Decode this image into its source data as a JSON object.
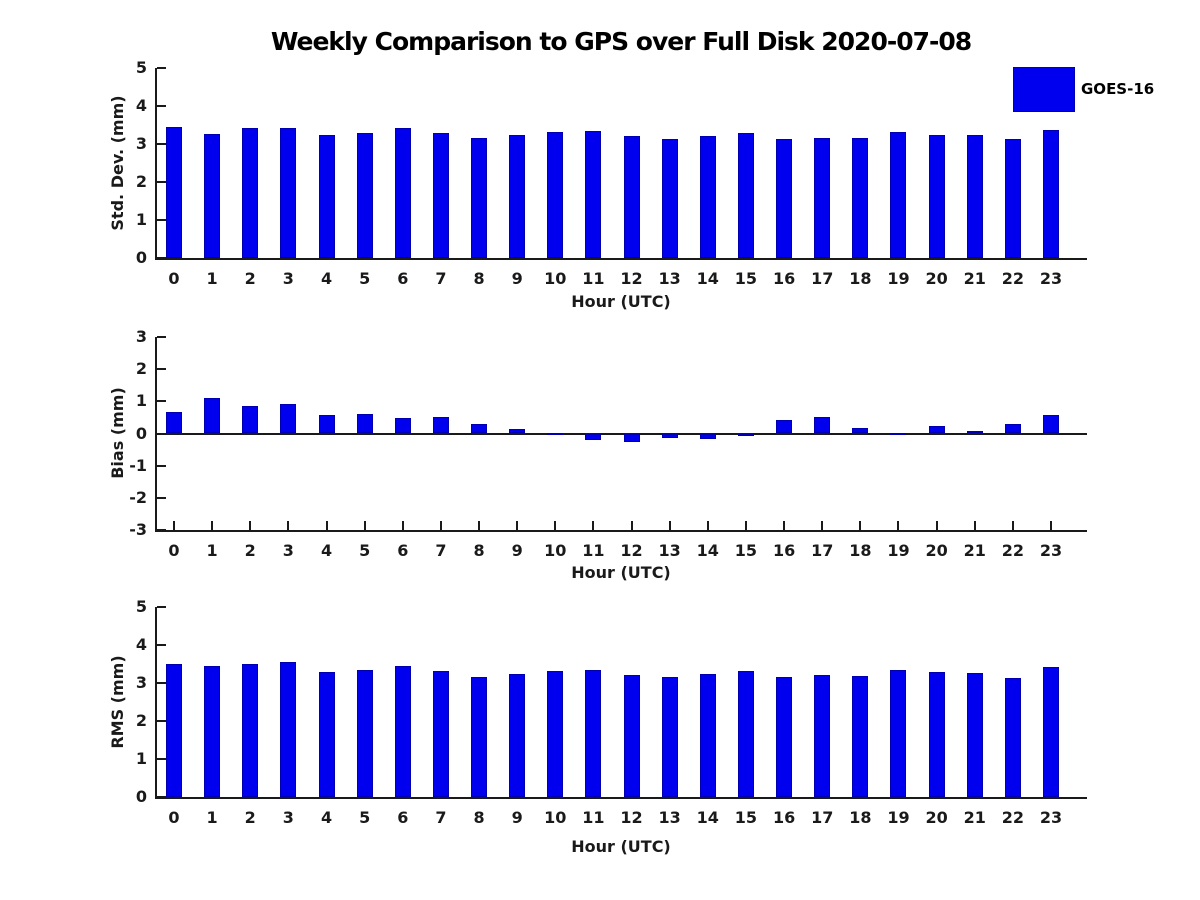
{
  "title": "Weekly Comparison to GPS over Full Disk 2020-07-08",
  "legend": {
    "label": "GOES-16",
    "color": "#0000ee",
    "position": "top-right"
  },
  "chart_data": [
    {
      "type": "bar",
      "panel": "std_dev",
      "ylabel": "Std. Dev. (mm)",
      "xlabel": "Hour (UTC)",
      "categories": [
        "0",
        "1",
        "2",
        "3",
        "4",
        "5",
        "6",
        "7",
        "8",
        "9",
        "10",
        "11",
        "12",
        "13",
        "14",
        "15",
        "16",
        "17",
        "18",
        "19",
        "20",
        "21",
        "22",
        "23"
      ],
      "series": [
        {
          "name": "GOES-16",
          "values": [
            3.46,
            3.27,
            3.43,
            3.43,
            3.24,
            3.29,
            3.43,
            3.29,
            3.16,
            3.24,
            3.32,
            3.34,
            3.21,
            3.13,
            3.21,
            3.29,
            3.14,
            3.17,
            3.16,
            3.32,
            3.25,
            3.25,
            3.12,
            3.37
          ]
        }
      ],
      "ylim": [
        0,
        5
      ],
      "yticks": [
        0,
        1,
        2,
        3,
        4,
        5
      ],
      "grid": false,
      "bar_color": "#0000ee"
    },
    {
      "type": "bar",
      "panel": "bias",
      "ylabel": "Bias (mm)",
      "xlabel": "Hour (UTC)",
      "categories": [
        "0",
        "1",
        "2",
        "3",
        "4",
        "5",
        "6",
        "7",
        "8",
        "9",
        "10",
        "11",
        "12",
        "13",
        "14",
        "15",
        "16",
        "17",
        "18",
        "19",
        "20",
        "21",
        "22",
        "23"
      ],
      "series": [
        {
          "name": "GOES-16",
          "values": [
            0.68,
            1.1,
            0.86,
            0.92,
            0.58,
            0.61,
            0.49,
            0.52,
            0.3,
            0.15,
            0.03,
            -0.2,
            -0.25,
            -0.15,
            -0.17,
            -0.07,
            0.41,
            0.52,
            0.18,
            0.01,
            0.24,
            0.08,
            0.3,
            0.57
          ]
        }
      ],
      "ylim": [
        -3,
        3
      ],
      "yticks": [
        -3,
        -2,
        -1,
        0,
        1,
        2,
        3
      ],
      "zero_line": true,
      "grid": false,
      "bar_color": "#0000ee"
    },
    {
      "type": "bar",
      "panel": "rms",
      "ylabel": "RMS (mm)",
      "xlabel": "Hour (UTC)",
      "categories": [
        "0",
        "1",
        "2",
        "3",
        "4",
        "5",
        "6",
        "7",
        "8",
        "9",
        "10",
        "11",
        "12",
        "13",
        "14",
        "15",
        "16",
        "17",
        "18",
        "19",
        "20",
        "21",
        "22",
        "23"
      ],
      "series": [
        {
          "name": "GOES-16",
          "values": [
            3.51,
            3.45,
            3.51,
            3.54,
            3.3,
            3.33,
            3.46,
            3.32,
            3.17,
            3.25,
            3.32,
            3.34,
            3.21,
            3.16,
            3.23,
            3.31,
            3.17,
            3.21,
            3.19,
            3.33,
            3.3,
            3.26,
            3.14,
            3.42
          ]
        }
      ],
      "ylim": [
        0,
        5
      ],
      "yticks": [
        0,
        1,
        2,
        3,
        4,
        5
      ],
      "grid": false,
      "bar_color": "#0000ee"
    }
  ]
}
